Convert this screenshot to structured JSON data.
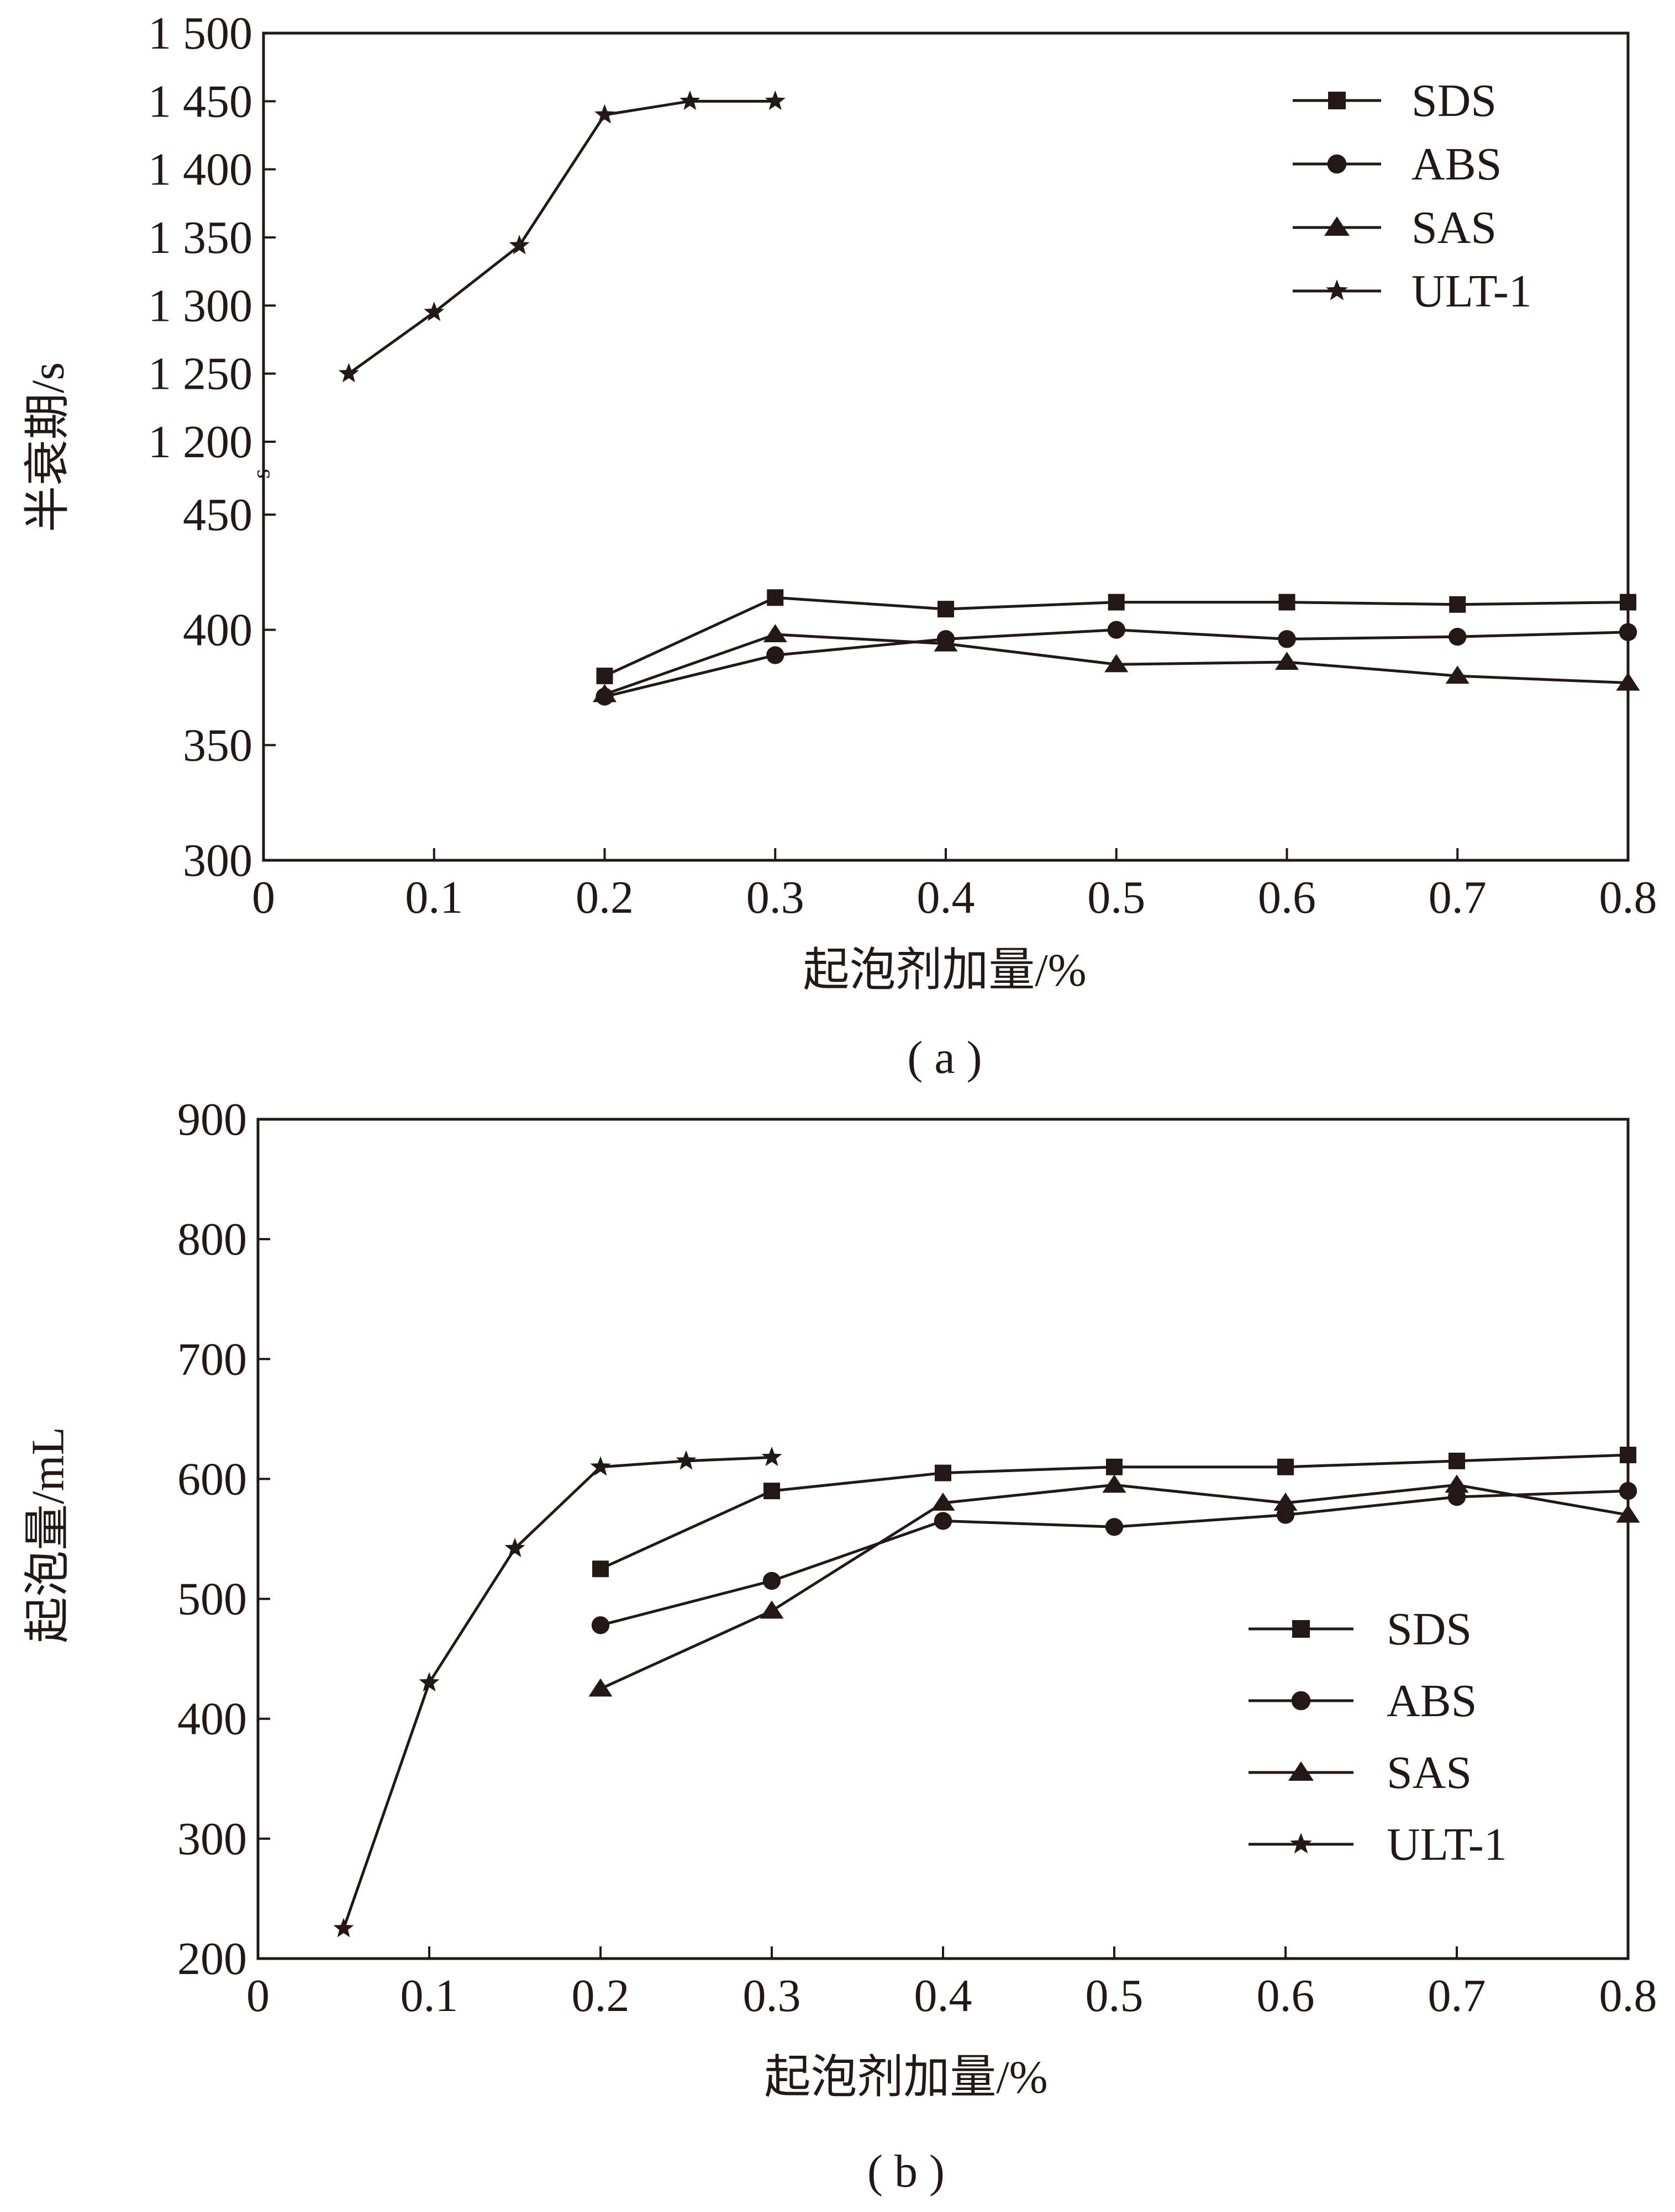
{
  "chart_data": [
    {
      "id": "a",
      "type": "line",
      "panel_label": "( a )",
      "xlabel": "起泡剂加量/%",
      "ylabel": "半衰期/s",
      "axis_break_mark": "s",
      "xlim": [
        0,
        0.8
      ],
      "xticks": [
        0,
        0.1,
        0.2,
        0.3,
        0.4,
        0.5,
        0.6,
        0.7,
        0.8
      ],
      "xtick_labels": [
        "0",
        "0.1",
        "0.2",
        "0.3",
        "0.4",
        "0.5",
        "0.6",
        "0.7",
        "0.8"
      ],
      "y_axis_broken": true,
      "y_lower_range": [
        300,
        450
      ],
      "y_upper_range": [
        1200,
        1500
      ],
      "yticks_lower": [
        300,
        350,
        400,
        450
      ],
      "ytick_labels_lower": [
        "300",
        "350",
        "400",
        "450"
      ],
      "yticks_upper": [
        1200,
        1250,
        1300,
        1350,
        1400,
        1450,
        1500
      ],
      "ytick_labels_upper": [
        "1 200",
        "1 250",
        "1 300",
        "1 350",
        "1 400",
        "1 450",
        "1 500"
      ],
      "legend_position": "top-right",
      "grid": false,
      "series": [
        {
          "name": "SDS",
          "marker": "square",
          "x": [
            0.2,
            0.3,
            0.4,
            0.5,
            0.6,
            0.7,
            0.8
          ],
          "y": [
            380,
            414,
            409,
            412,
            412,
            411,
            412
          ]
        },
        {
          "name": "ABS",
          "marker": "circle",
          "x": [
            0.2,
            0.3,
            0.4,
            0.5,
            0.6,
            0.7,
            0.8
          ],
          "y": [
            371,
            389,
            396,
            400,
            396,
            397,
            399
          ]
        },
        {
          "name": "SAS",
          "marker": "triangle",
          "x": [
            0.2,
            0.3,
            0.4,
            0.5,
            0.6,
            0.7,
            0.8
          ],
          "y": [
            372,
            398,
            394,
            385,
            386,
            380,
            377
          ]
        },
        {
          "name": "ULT-1",
          "marker": "star",
          "x": [
            0.05,
            0.1,
            0.15,
            0.2,
            0.25,
            0.3
          ],
          "y": [
            1250,
            1295,
            1344,
            1440,
            1450,
            1450
          ]
        }
      ]
    },
    {
      "id": "b",
      "type": "line",
      "panel_label": "( b )",
      "xlabel": "起泡剂加量/%",
      "ylabel": "起泡量/mL",
      "xlim": [
        0,
        0.8
      ],
      "xticks": [
        0,
        0.1,
        0.2,
        0.3,
        0.4,
        0.5,
        0.6,
        0.7,
        0.8
      ],
      "xtick_labels": [
        "0",
        "0.1",
        "0.2",
        "0.3",
        "0.4",
        "0.5",
        "0.6",
        "0.7",
        "0.8"
      ],
      "ylim": [
        200,
        900
      ],
      "yticks": [
        200,
        300,
        400,
        500,
        600,
        700,
        800,
        900
      ],
      "ytick_labels": [
        "200",
        "300",
        "400",
        "500",
        "600",
        "700",
        "800",
        "900"
      ],
      "legend_position": "center-right",
      "grid": false,
      "series": [
        {
          "name": "SDS",
          "marker": "square",
          "x": [
            0.2,
            0.3,
            0.4,
            0.5,
            0.6,
            0.7,
            0.8
          ],
          "y": [
            525,
            590,
            605,
            610,
            610,
            615,
            620
          ]
        },
        {
          "name": "ABS",
          "marker": "circle",
          "x": [
            0.2,
            0.3,
            0.4,
            0.5,
            0.6,
            0.7,
            0.8
          ],
          "y": [
            478,
            515,
            565,
            560,
            570,
            585,
            590
          ]
        },
        {
          "name": "SAS",
          "marker": "triangle",
          "x": [
            0.2,
            0.3,
            0.4,
            0.5,
            0.6,
            0.7,
            0.8
          ],
          "y": [
            425,
            490,
            580,
            595,
            580,
            595,
            570
          ]
        },
        {
          "name": "ULT-1",
          "marker": "star",
          "x": [
            0.05,
            0.1,
            0.15,
            0.2,
            0.25,
            0.3
          ],
          "y": [
            225,
            430,
            542,
            610,
            615,
            618
          ]
        }
      ]
    }
  ]
}
